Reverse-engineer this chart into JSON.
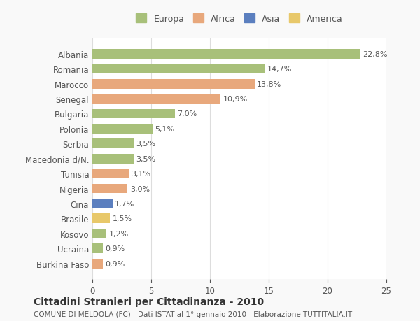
{
  "countries": [
    "Albania",
    "Romania",
    "Marocco",
    "Senegal",
    "Bulgaria",
    "Polonia",
    "Serbia",
    "Macedonia d/N.",
    "Tunisia",
    "Nigeria",
    "Cina",
    "Brasile",
    "Kosovo",
    "Ucraina",
    "Burkina Faso"
  ],
  "values": [
    22.8,
    14.7,
    13.8,
    10.9,
    7.0,
    5.1,
    3.5,
    3.5,
    3.1,
    3.0,
    1.7,
    1.5,
    1.2,
    0.9,
    0.9
  ],
  "labels": [
    "22,8%",
    "14,7%",
    "13,8%",
    "10,9%",
    "7,0%",
    "5,1%",
    "3,5%",
    "3,5%",
    "3,1%",
    "3,0%",
    "1,7%",
    "1,5%",
    "1,2%",
    "0,9%",
    "0,9%"
  ],
  "colors": [
    "#a8c07a",
    "#a8c07a",
    "#e8a87c",
    "#e8a87c",
    "#a8c07a",
    "#a8c07a",
    "#a8c07a",
    "#a8c07a",
    "#e8a87c",
    "#e8a87c",
    "#5b7fbf",
    "#e8c86a",
    "#a8c07a",
    "#a8c07a",
    "#e8a87c"
  ],
  "legend": {
    "Europa": "#a8c07a",
    "Africa": "#e8a87c",
    "Asia": "#5b7fbf",
    "America": "#e8c86a"
  },
  "xlim": [
    0,
    25
  ],
  "xticks": [
    0,
    5,
    10,
    15,
    20,
    25
  ],
  "title": "Cittadini Stranieri per Cittadinanza - 2010",
  "subtitle": "COMUNE DI MELDOLA (FC) - Dati ISTAT al 1° gennaio 2010 - Elaborazione TUTTITALIA.IT",
  "background_color": "#f9f9f9",
  "bar_bg_color": "#ffffff",
  "grid_color": "#dddddd"
}
